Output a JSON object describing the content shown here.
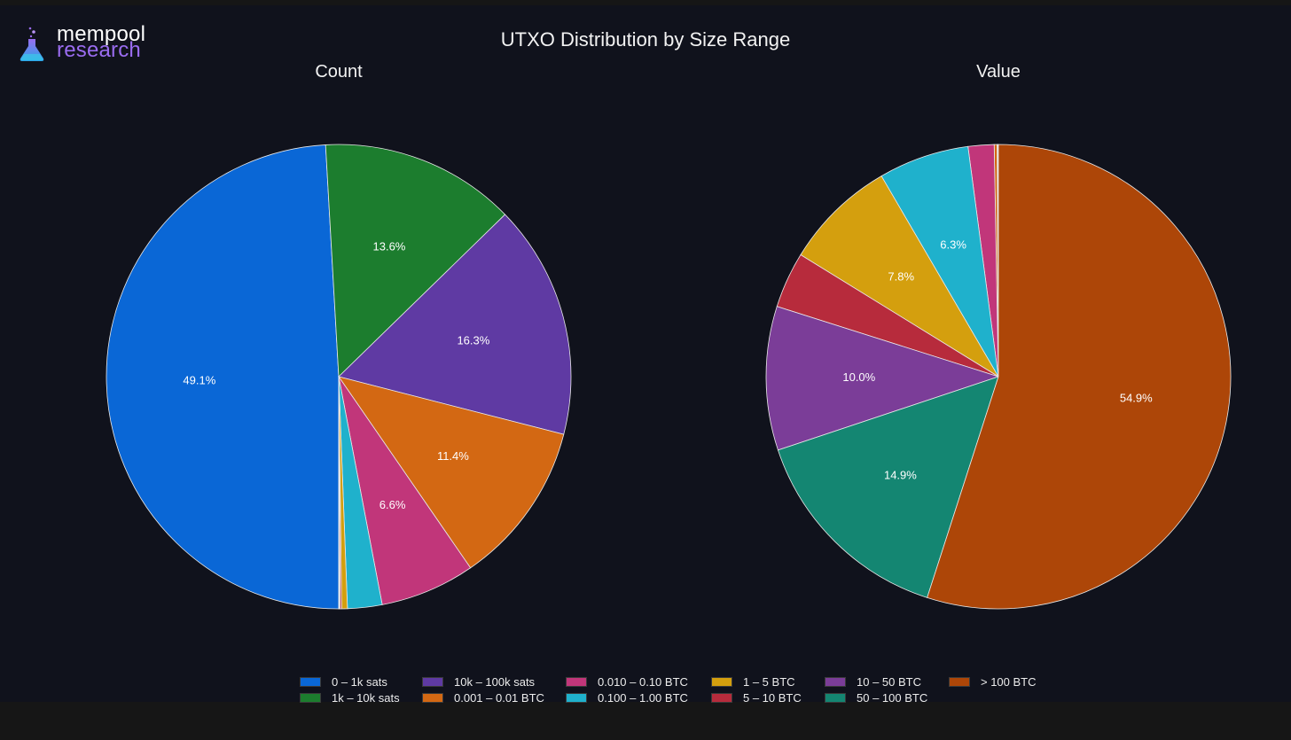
{
  "brand": {
    "line1": "mempool",
    "line2": "research"
  },
  "title": "UTXO Distribution by Size Range",
  "chart_data": [
    {
      "type": "pie",
      "title": "Count",
      "categories": [
        "0 – 1k sats",
        "1k – 10k sats",
        "10k – 100k sats",
        "0.001 – 0.01 BTC",
        "0.010 – 0.10 BTC",
        "0.100 – 1.00 BTC",
        "1 – 5 BTC",
        "5 – 10 BTC",
        "10 – 50 BTC",
        "50 – 100 BTC",
        "> 100 BTC"
      ],
      "values": [
        49.1,
        13.6,
        16.3,
        11.4,
        6.6,
        2.4,
        0.4,
        0.1,
        0.06,
        0.02,
        0.02
      ],
      "labels": [
        "49.1%",
        "13.6%",
        "16.3%",
        "11.4%",
        "6.6%",
        "",
        "",
        "",
        "",
        "",
        ""
      ]
    },
    {
      "type": "pie",
      "title": "Value",
      "categories": [
        "0 – 1k sats",
        "1k – 10k sats",
        "10k – 100k sats",
        "0.001 – 0.01 BTC",
        "0.010 – 0.10 BTC",
        "0.100 – 1.00 BTC",
        "1 – 5 BTC",
        "5 – 10 BTC",
        "10 – 50 BTC",
        "50 – 100 BTC",
        "> 100 BTC"
      ],
      "values": [
        0.02,
        0.02,
        0.05,
        0.2,
        1.8,
        6.3,
        7.8,
        3.9,
        10.0,
        14.9,
        54.9
      ],
      "labels": [
        "",
        "",
        "",
        "",
        "",
        "6.3%",
        "7.8%",
        "",
        "10.0%",
        "14.9%",
        "54.9%"
      ]
    }
  ],
  "legend": [
    {
      "label": "0 – 1k sats",
      "color": "#0a67d6"
    },
    {
      "label": "1k – 10k sats",
      "color": "#1c7d2e"
    },
    {
      "label": "10k – 100k sats",
      "color": "#5f3aa3"
    },
    {
      "label": "0.001 – 0.01 BTC",
      "color": "#d36813"
    },
    {
      "label": "0.010 – 0.10 BTC",
      "color": "#c1367a"
    },
    {
      "label": "0.100 – 1.00 BTC",
      "color": "#1fb1cc"
    },
    {
      "label": "1 – 5 BTC",
      "color": "#d49f0e"
    },
    {
      "label": "5 – 10 BTC",
      "color": "#b72b3c"
    },
    {
      "label": "10 – 50 BTC",
      "color": "#7b3d98"
    },
    {
      "label": "50 – 100 BTC",
      "color": "#148672"
    },
    {
      "label": "> 100 BTC",
      "color": "#ad4608"
    }
  ]
}
